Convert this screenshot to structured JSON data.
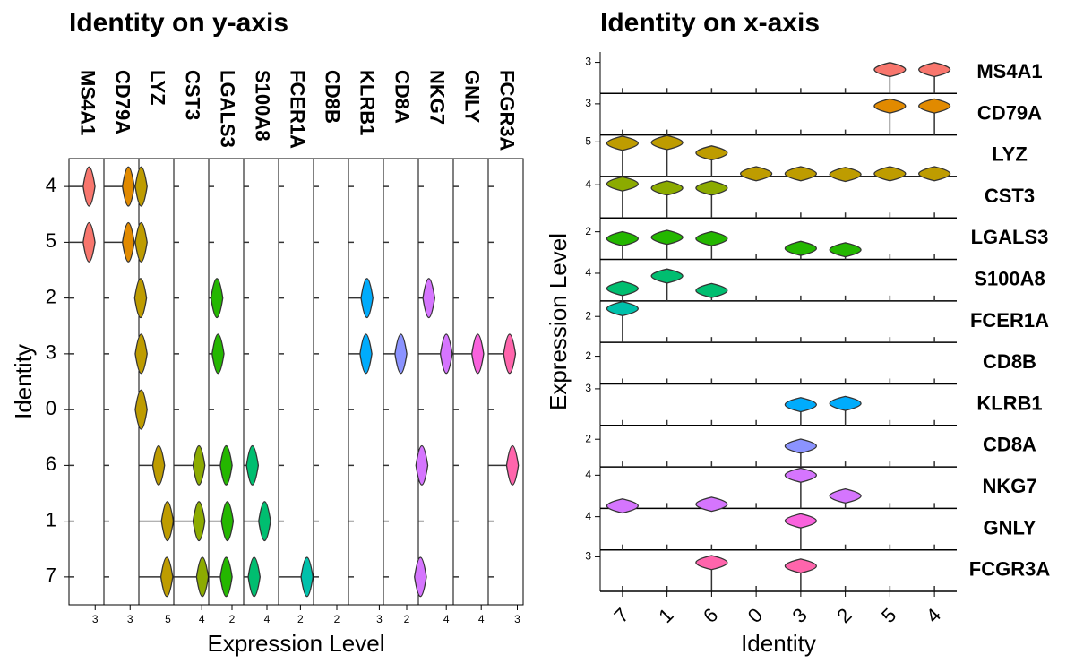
{
  "chart_data": [
    {
      "type": "violin",
      "orientation": "horizontal",
      "title": "Identity on y-axis",
      "x_label": "Expression Level",
      "y_label": "Identity",
      "categories": [
        "4",
        "5",
        "2",
        "3",
        "0",
        "6",
        "1",
        "7"
      ],
      "series": [
        {
          "name": "MS4A1",
          "color": "#F8766D",
          "lim": [
            0,
            4
          ],
          "ticks": [
            3
          ],
          "values": [
            2.3,
            2.3,
            null,
            null,
            null,
            null,
            null,
            null
          ]
        },
        {
          "name": "CD79A",
          "color": "#E18A00",
          "lim": [
            0,
            4
          ],
          "ticks": [
            3
          ],
          "values": [
            2.8,
            2.8,
            null,
            null,
            null,
            null,
            null,
            null
          ]
        },
        {
          "name": "LYZ",
          "color": "#BE9C00",
          "lim": [
            0,
            6
          ],
          "ticks": [
            5
          ],
          "values": [
            0.4,
            0.4,
            0.3,
            0.4,
            0.4,
            3.4,
            4.9,
            4.8
          ]
        },
        {
          "name": "CST3",
          "color": "#8CAB00",
          "lim": [
            0,
            5
          ],
          "ticks": [
            4
          ],
          "values": [
            null,
            null,
            null,
            null,
            null,
            3.6,
            3.6,
            4.1
          ]
        },
        {
          "name": "LGALS3",
          "color": "#24B700",
          "lim": [
            0,
            3
          ],
          "ticks": [
            2
          ],
          "values": [
            null,
            null,
            0.7,
            0.8,
            null,
            1.5,
            1.6,
            1.5
          ]
        },
        {
          "name": "S100A8",
          "color": "#00BE70",
          "lim": [
            0,
            6
          ],
          "ticks": [
            4
          ],
          "values": [
            null,
            null,
            null,
            null,
            null,
            1.5,
            3.6,
            1.8
          ]
        },
        {
          "name": "FCER1A",
          "color": "#00C1AB",
          "lim": [
            0,
            3.2
          ],
          "ticks": [
            2
          ],
          "values": [
            null,
            null,
            null,
            null,
            null,
            null,
            null,
            2.6
          ]
        },
        {
          "name": "CD8B",
          "color": "#00BBDA",
          "lim": [
            0,
            3
          ],
          "ticks": [
            2
          ],
          "values": [
            null,
            null,
            null,
            null,
            null,
            null,
            null,
            null
          ]
        },
        {
          "name": "KLRB1",
          "color": "#00ACFC",
          "lim": [
            0,
            3.4
          ],
          "ticks": [
            3
          ],
          "values": [
            null,
            null,
            1.8,
            1.7,
            null,
            null,
            null,
            null
          ]
        },
        {
          "name": "CD8A",
          "color": "#8B93FF",
          "lim": [
            0,
            3
          ],
          "ticks": [
            2
          ],
          "values": [
            null,
            null,
            null,
            1.5,
            null,
            null,
            null,
            null
          ]
        },
        {
          "name": "NKG7",
          "color": "#D575FE",
          "lim": [
            0,
            5
          ],
          "ticks": [
            4
          ],
          "values": [
            null,
            null,
            1.5,
            4.0,
            null,
            0.5,
            null,
            0.3
          ]
        },
        {
          "name": "GNLY",
          "color": "#F962DD",
          "lim": [
            0,
            5
          ],
          "ticks": [
            4
          ],
          "values": [
            null,
            null,
            null,
            3.5,
            null,
            null,
            null,
            null
          ]
        },
        {
          "name": "FCGR3A",
          "color": "#FF65AC",
          "lim": [
            0,
            3.6
          ],
          "ticks": [
            3
          ],
          "values": [
            null,
            null,
            null,
            2.2,
            null,
            2.5,
            null,
            null
          ]
        }
      ]
    },
    {
      "type": "violin",
      "orientation": "vertical",
      "title": "Identity on x-axis",
      "x_label": "Identity",
      "y_label": "Expression Level",
      "categories": [
        "7",
        "1",
        "6",
        "0",
        "3",
        "2",
        "5",
        "4"
      ],
      "series": [
        {
          "name": "MS4A1",
          "color": "#F8766D",
          "lim": [
            0,
            4
          ],
          "ticks": [
            3
          ],
          "values": [
            null,
            null,
            null,
            null,
            null,
            null,
            2.3,
            2.3
          ]
        },
        {
          "name": "CD79A",
          "color": "#E18A00",
          "lim": [
            0,
            4
          ],
          "ticks": [
            3
          ],
          "values": [
            null,
            null,
            null,
            null,
            null,
            null,
            2.8,
            2.8
          ]
        },
        {
          "name": "LYZ",
          "color": "#BE9C00",
          "lim": [
            0,
            6
          ],
          "ticks": [
            5
          ],
          "values": [
            4.8,
            4.9,
            3.4,
            0.4,
            0.4,
            0.3,
            0.4,
            0.4
          ]
        },
        {
          "name": "CST3",
          "color": "#8CAB00",
          "lim": [
            0,
            5
          ],
          "ticks": [
            4
          ],
          "values": [
            4.1,
            3.6,
            3.6,
            null,
            null,
            null,
            null,
            null
          ]
        },
        {
          "name": "LGALS3",
          "color": "#24B700",
          "lim": [
            0,
            3
          ],
          "ticks": [
            2
          ],
          "values": [
            1.5,
            1.6,
            1.5,
            null,
            0.8,
            0.7,
            null,
            null
          ]
        },
        {
          "name": "S100A8",
          "color": "#00BE70",
          "lim": [
            0,
            6
          ],
          "ticks": [
            4
          ],
          "values": [
            1.8,
            3.6,
            1.5,
            null,
            null,
            null,
            null,
            null
          ]
        },
        {
          "name": "FCER1A",
          "color": "#00C1AB",
          "lim": [
            0,
            3.2
          ],
          "ticks": [
            2
          ],
          "values": [
            2.6,
            null,
            null,
            null,
            null,
            null,
            null,
            null
          ]
        },
        {
          "name": "CD8B",
          "color": "#00BBDA",
          "lim": [
            0,
            3
          ],
          "ticks": [
            2
          ],
          "values": [
            null,
            null,
            null,
            null,
            null,
            null,
            null,
            null
          ]
        },
        {
          "name": "KLRB1",
          "color": "#00ACFC",
          "lim": [
            0,
            3.4
          ],
          "ticks": [
            3
          ],
          "values": [
            null,
            null,
            null,
            null,
            1.7,
            1.8,
            null,
            null
          ]
        },
        {
          "name": "CD8A",
          "color": "#8B93FF",
          "lim": [
            0,
            3
          ],
          "ticks": [
            2
          ],
          "values": [
            null,
            null,
            null,
            null,
            1.5,
            null,
            null,
            null
          ]
        },
        {
          "name": "NKG7",
          "color": "#D575FE",
          "lim": [
            0,
            5
          ],
          "ticks": [
            4
          ],
          "values": [
            0.3,
            null,
            0.5,
            null,
            4.0,
            1.5,
            null,
            null
          ]
        },
        {
          "name": "GNLY",
          "color": "#F962DD",
          "lim": [
            0,
            5
          ],
          "ticks": [
            4
          ],
          "values": [
            null,
            null,
            null,
            null,
            3.5,
            null,
            null,
            null
          ]
        },
        {
          "name": "FCGR3A",
          "color": "#FF65AC",
          "lim": [
            0,
            3.6
          ],
          "ticks": [
            3
          ],
          "values": [
            null,
            null,
            2.5,
            null,
            2.2,
            null,
            null,
            null
          ]
        }
      ]
    }
  ]
}
